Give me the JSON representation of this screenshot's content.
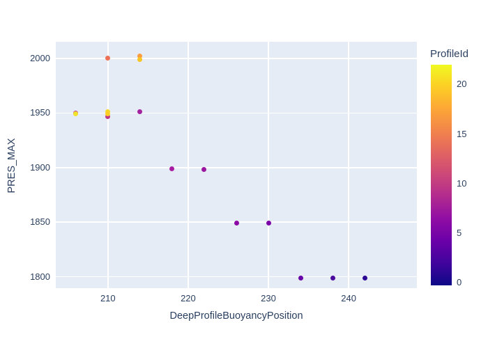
{
  "chart_data": {
    "type": "scatter",
    "title": "",
    "xlabel": "DeepProfileBuoyancyPosition",
    "ylabel": "PRES_MAX",
    "x_range": [
      203.5,
      248.5
    ],
    "y_range": [
      1789.5,
      2015.3
    ],
    "x_ticks": [
      210,
      220,
      230,
      240
    ],
    "y_ticks": [
      1800,
      1850,
      1900,
      1950,
      2000
    ],
    "grid": true,
    "legend_position": "right-colorbar",
    "plot_bgcolor": "#e5ecf6",
    "paper_bgcolor": "#ffffff",
    "grid_color": "#ffffff",
    "text_color": "#2a3f5f",
    "marker_size_px": 7,
    "points": [
      {
        "x": 210,
        "y": 2000,
        "profile_id": 14,
        "color": "#ec7156"
      },
      {
        "x": 214,
        "y": 2002,
        "profile_id": 17,
        "color": "#fb9d3c"
      },
      {
        "x": 214,
        "y": 1999,
        "profile_id": 19,
        "color": "#f7c524"
      },
      {
        "x": 210,
        "y": 1947,
        "profile_id": 10,
        "color": "#bd3786"
      },
      {
        "x": 210,
        "y": 1951.5,
        "profile_id": 20,
        "color": "#f8d724"
      },
      {
        "x": 210,
        "y": 1949.5,
        "profile_id": 19,
        "color": "#fcce25"
      },
      {
        "x": 206,
        "y": 1950,
        "profile_id": 9,
        "color": "#c0368c"
      },
      {
        "x": 206,
        "y": 1949,
        "profile_id": 21,
        "color": "#f1e32b"
      },
      {
        "x": 214,
        "y": 1951,
        "profile_id": 8,
        "color": "#a322a0"
      },
      {
        "x": 218,
        "y": 1899,
        "profile_id": 8,
        "color": "#a81ca4"
      },
      {
        "x": 222,
        "y": 1898,
        "profile_id": 7,
        "color": "#9a169e"
      },
      {
        "x": 226,
        "y": 1849,
        "profile_id": 6,
        "color": "#8b0aa5"
      },
      {
        "x": 230,
        "y": 1849,
        "profile_id": 5,
        "color": "#7a02a8"
      },
      {
        "x": 234,
        "y": 1799,
        "profile_id": 4,
        "color": "#6600a7"
      },
      {
        "x": 238,
        "y": 1799,
        "profile_id": 3,
        "color": "#4b0c9e"
      },
      {
        "x": 242,
        "y": 1799,
        "profile_id": 1,
        "color": "#2b0994"
      }
    ],
    "colorbar": {
      "title": "ProfileId",
      "ticks": [
        0,
        5,
        10,
        15,
        20
      ],
      "range": [
        -0.25,
        22.0
      ],
      "colorscale_name": "plasma",
      "gradient_stops": [
        "#0d0887",
        "#41049d",
        "#6a00a8",
        "#8f0da4",
        "#b12a90",
        "#cc4778",
        "#e16462",
        "#f2844b",
        "#fca636",
        "#fcce25",
        "#f0f921"
      ]
    }
  }
}
